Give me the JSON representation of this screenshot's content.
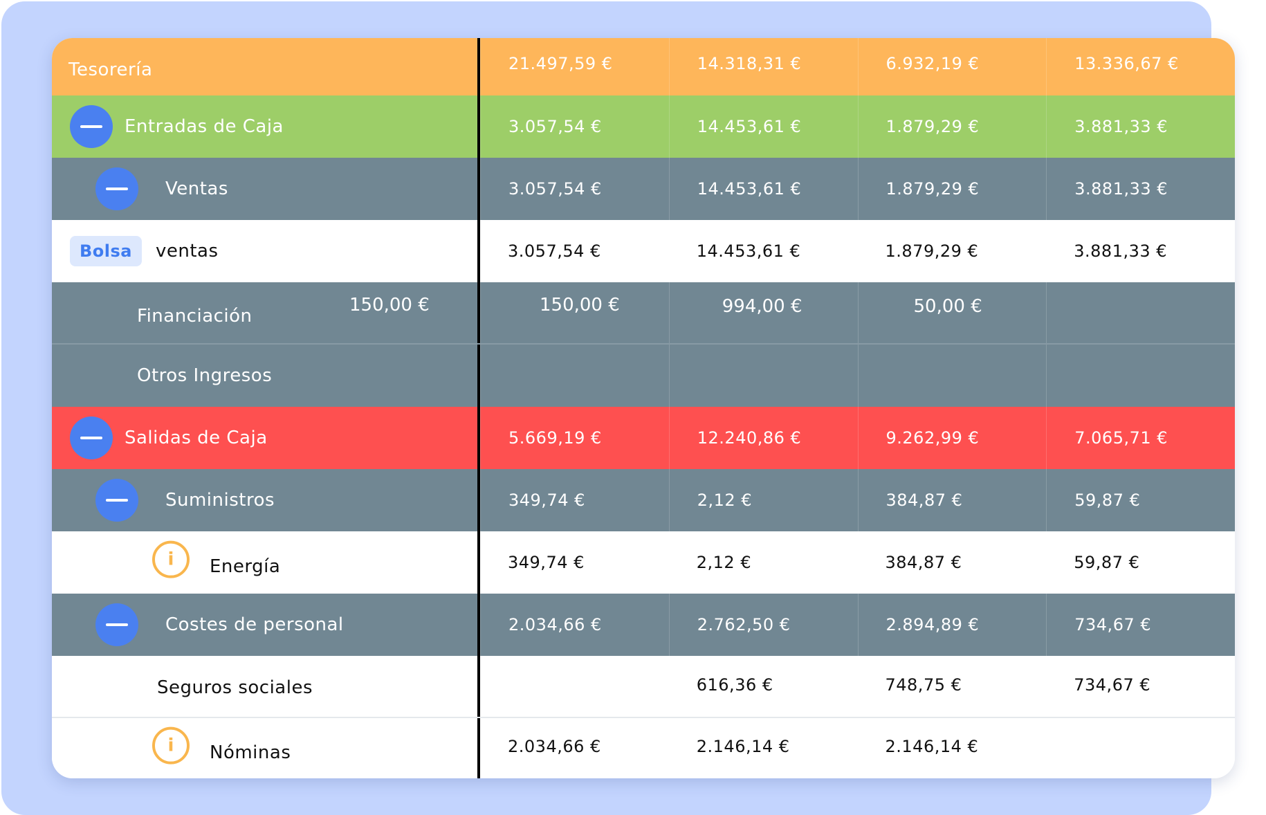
{
  "rows": [
    {
      "label": "Tesorería",
      "values": [
        "21.497,59 €",
        "14.318,31 €",
        "6.932,19 €",
        "13.336,67 €"
      ]
    },
    {
      "label": "Entradas de Caja",
      "values": [
        "3.057,54 €",
        "14.453,61 €",
        "1.879,29 €",
        "3.881,33 €"
      ]
    },
    {
      "label": "Ventas",
      "values": [
        "3.057,54 €",
        "14.453,61 €",
        "1.879,29 €",
        "3.881,33 €"
      ]
    },
    {
      "badge": "Bolsa",
      "label": "ventas",
      "values": [
        "3.057,54 €",
        "14.453,61 €",
        "1.879,29 €",
        "3.881,33 €"
      ]
    },
    {
      "label": "Financiación",
      "extra": "150,00 €",
      "values": [
        "150,00 €",
        "994,00 €",
        "50,00 €",
        ""
      ]
    },
    {
      "label": "Otros Ingresos",
      "values": [
        "",
        "",
        "",
        ""
      ]
    },
    {
      "label": "Salidas de Caja",
      "values": [
        "5.669,19 €",
        "12.240,86 €",
        "9.262,99 €",
        "7.065,71 €"
      ]
    },
    {
      "label": "Suministros",
      "values": [
        "349,74 €",
        "2,12 €",
        "384,87 €",
        "59,87 €"
      ]
    },
    {
      "label": "Energía",
      "icon_glyph": "i",
      "values": [
        "349,74 €",
        "2,12 €",
        "384,87 €",
        "59,87 €"
      ]
    },
    {
      "label": "Costes de personal",
      "values": [
        "2.034,66 €",
        "2.762,50 €",
        "2.894,89 €",
        "734,67 €"
      ]
    },
    {
      "label": "Seguros sociales",
      "values": [
        "",
        "616,36 €",
        "748,75 €",
        "734,67 €"
      ]
    },
    {
      "label": "Nóminas",
      "icon_glyph": "i",
      "values": [
        "2.034,66 €",
        "2.146,14 €",
        "2.146,14 €",
        ""
      ]
    }
  ],
  "colors": {
    "orange": "#feb65a",
    "green": "#9dce68",
    "slate": "#718793",
    "red": "#fe5050",
    "accent": "#4a80f0",
    "warning": "#f9b64d",
    "backdrop": "#c3d4fe"
  }
}
